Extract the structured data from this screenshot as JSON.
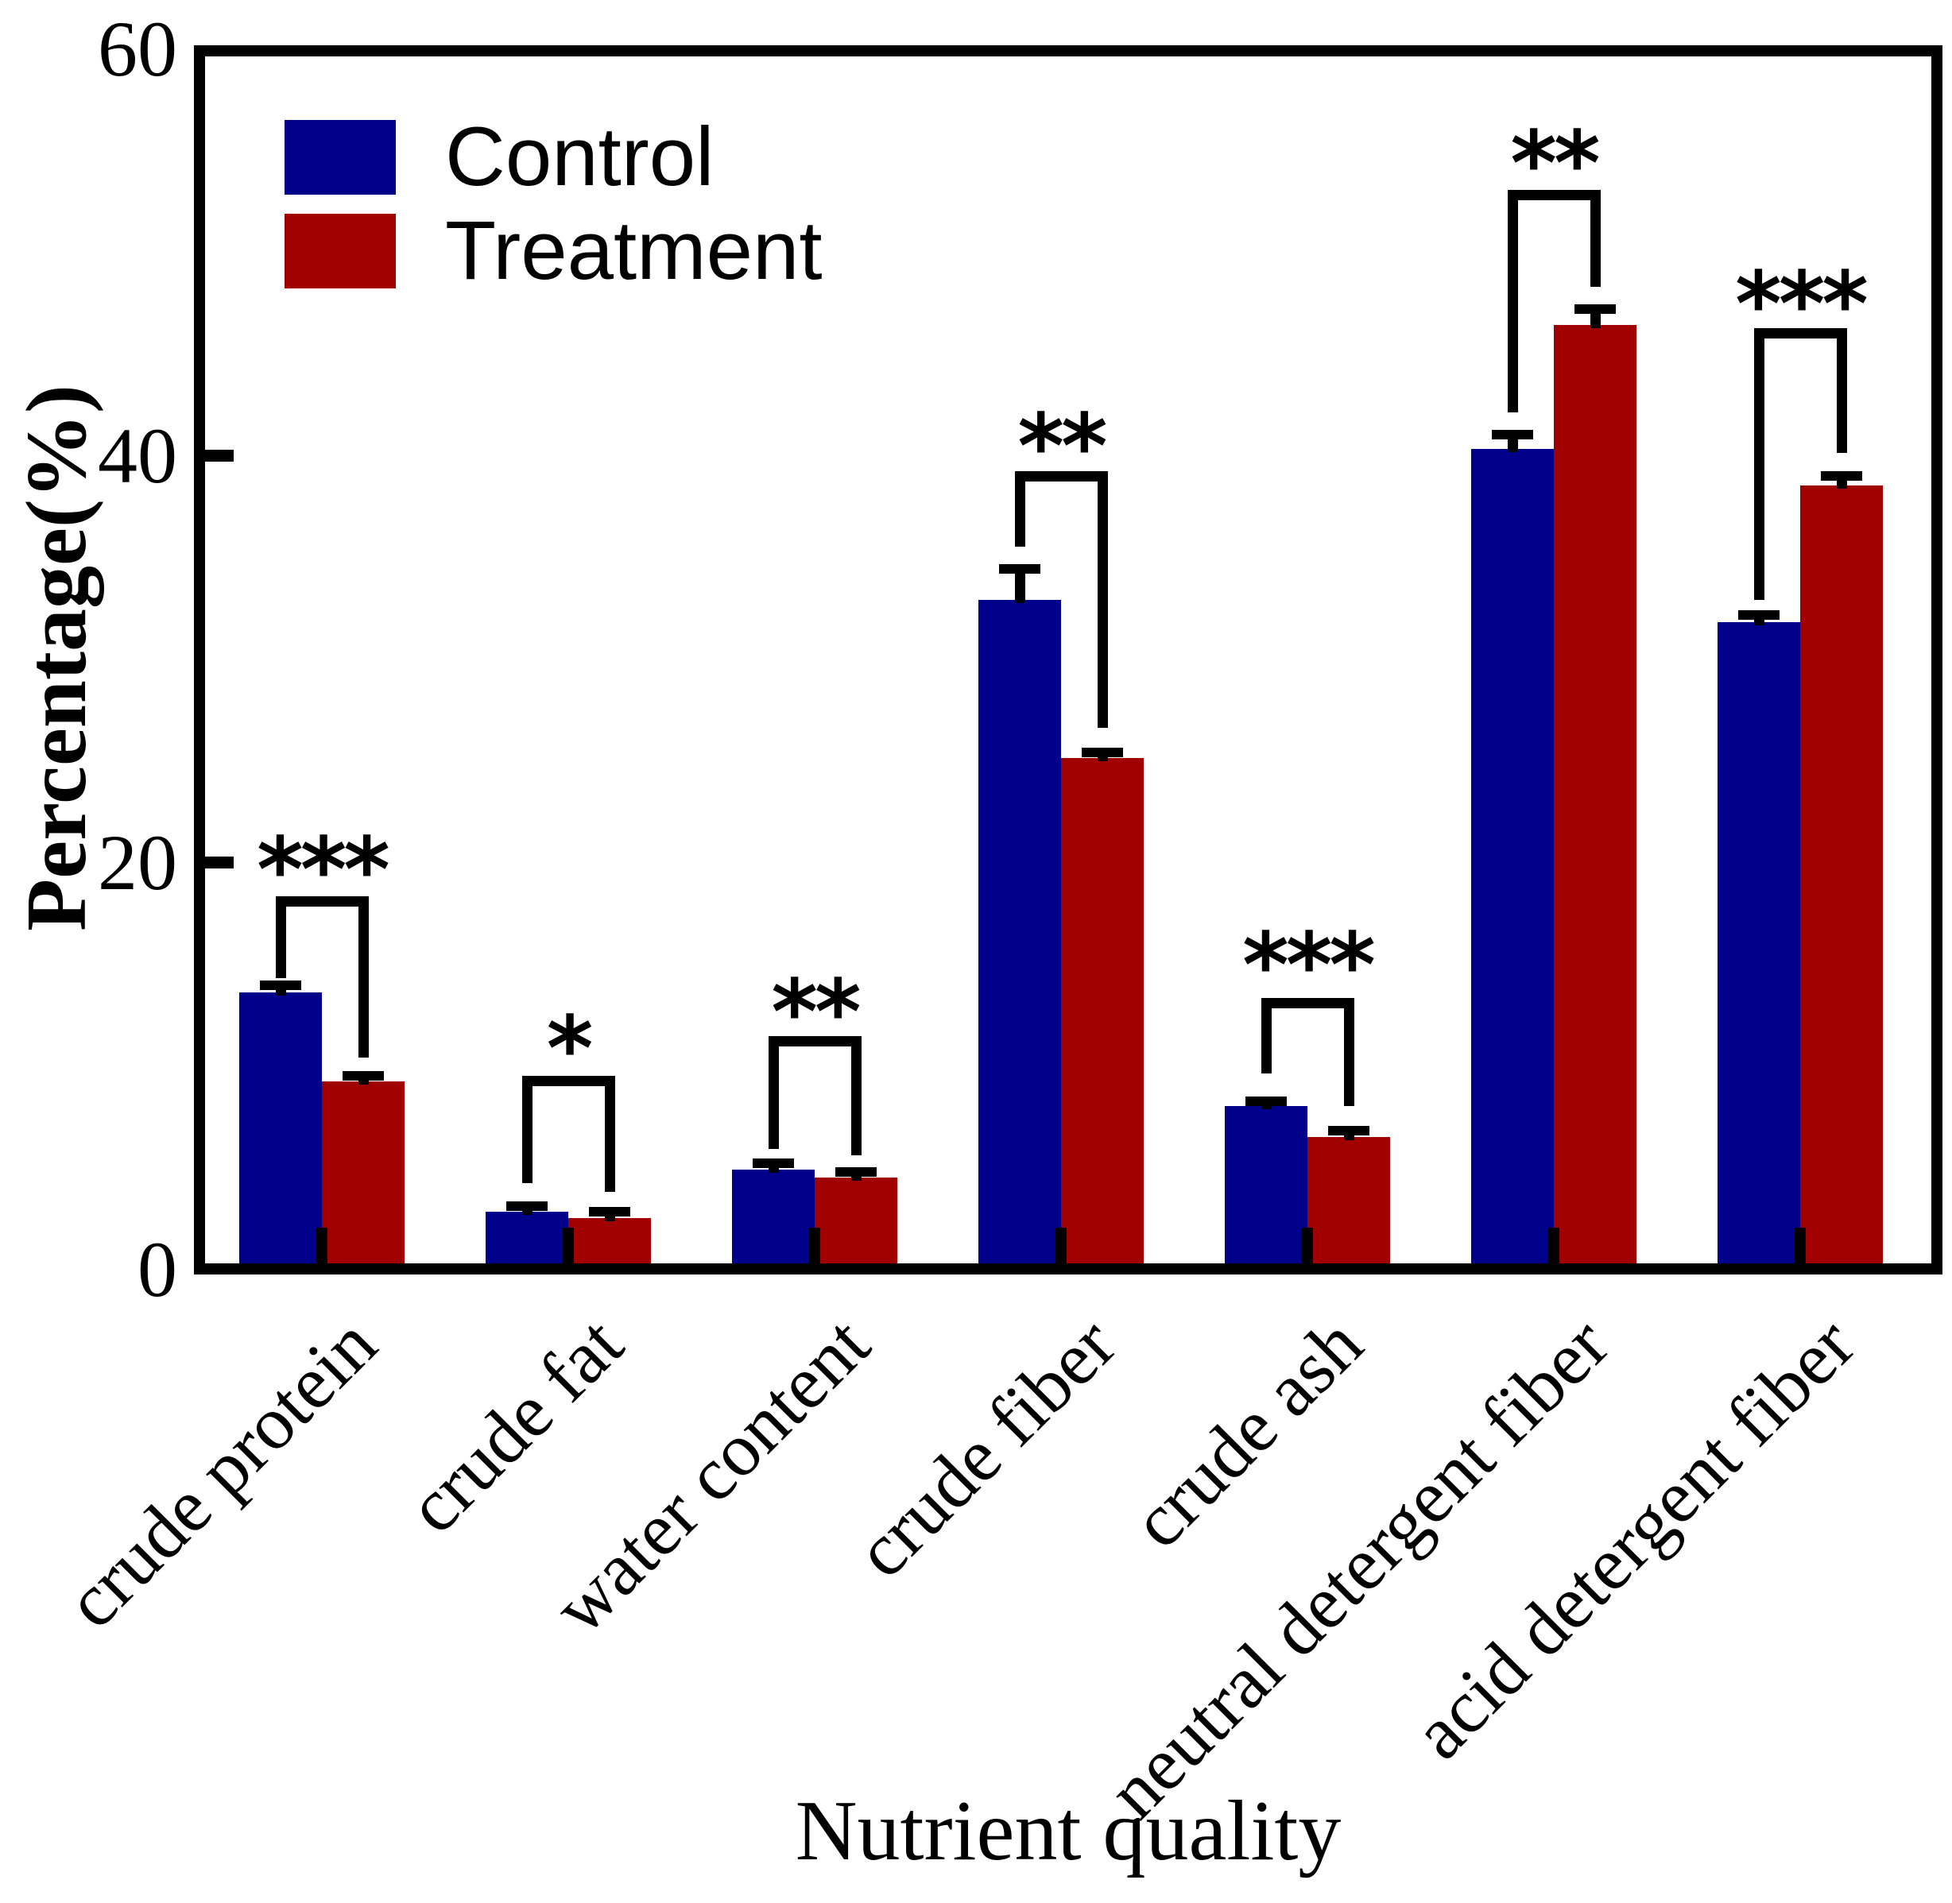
{
  "chart_data": {
    "type": "bar",
    "title": "",
    "xlabel": "Nutrient quality",
    "ylabel": "Percentage(%)",
    "ylim": [
      0,
      60
    ],
    "yticks": [
      0,
      20,
      40,
      60
    ],
    "grid": false,
    "legend_position": "top-left-inside",
    "categories": [
      "crude protein",
      "crude fat",
      "water content",
      "crude fiber",
      "crude ash",
      "neutral detergent fiber",
      "acid detergent fiber"
    ],
    "series": [
      {
        "name": "Control",
        "color": "#00008B",
        "values": [
          13.6,
          2.8,
          4.9,
          32.9,
          8.0,
          40.3,
          31.8
        ],
        "errors": [
          0.35,
          0.3,
          0.3,
          1.5,
          0.25,
          0.7,
          0.35
        ]
      },
      {
        "name": "Treatment",
        "color": "#A00000",
        "values": [
          9.2,
          2.5,
          4.5,
          25.1,
          6.5,
          46.4,
          38.5
        ],
        "errors": [
          0.3,
          0.3,
          0.25,
          0.3,
          0.3,
          0.8,
          0.5
        ]
      }
    ],
    "annotations": [
      {
        "category": "crude protein",
        "sig": "***",
        "bracket_top": 18.1,
        "left_drop_to": 14.3,
        "right_drop_to": 10.4,
        "star_y": 19.9
      },
      {
        "category": "crude fat",
        "sig": "*",
        "bracket_top": 9.25,
        "left_drop_to": 4.2,
        "right_drop_to": 3.8,
        "star_y": 11.1
      },
      {
        "category": "water content",
        "sig": "**",
        "bracket_top": 11.2,
        "left_drop_to": 5.9,
        "right_drop_to": 5.6,
        "star_y": 12.9
      },
      {
        "category": "crude fiber",
        "sig": "**",
        "bracket_top": 39.0,
        "left_drop_to": 35.5,
        "right_drop_to": 26.6,
        "star_y": 40.7
      },
      {
        "category": "crude ash",
        "sig": "***",
        "bracket_top": 13.1,
        "left_drop_to": 9.6,
        "right_drop_to": 8.0,
        "star_y": 15.2
      },
      {
        "category": "neutral detergent fiber",
        "sig": "**",
        "bracket_top": 52.8,
        "left_drop_to": 42.1,
        "right_drop_to": 48.3,
        "star_y": 54.6
      },
      {
        "category": "acid detergent fiber",
        "sig": "***",
        "bracket_top": 46.0,
        "left_drop_to": 32.9,
        "right_drop_to": 40.1,
        "star_y": 47.7
      }
    ]
  },
  "legend": {
    "items": [
      {
        "label": "Control",
        "color": "#00008B"
      },
      {
        "label": "Treatment",
        "color": "#A00000"
      }
    ]
  }
}
